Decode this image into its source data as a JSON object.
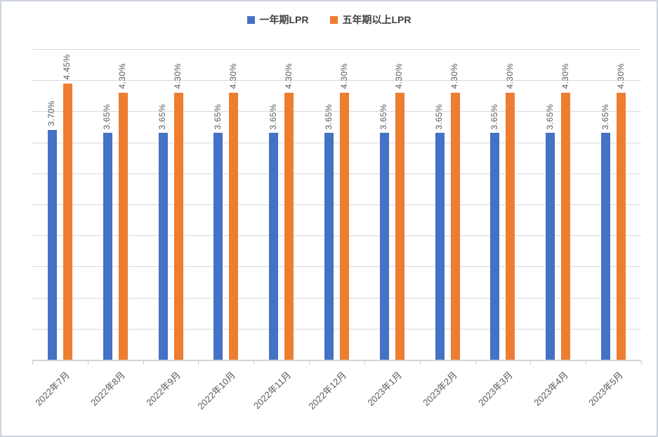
{
  "legend": {
    "items": [
      {
        "label": "一年期LPR",
        "color": "#4472C4"
      },
      {
        "label": "五年期以上LPR",
        "color": "#ED7D31"
      }
    ]
  },
  "chart_data": {
    "type": "bar",
    "title": "",
    "xlabel": "",
    "ylabel": "",
    "categories": [
      "2022年7月",
      "2022年8月",
      "2022年9月",
      "2022年10月",
      "2022年11月",
      "2022年12月",
      "2023年1月",
      "2023年2月",
      "2023年3月",
      "2023年4月",
      "2023年5月"
    ],
    "series": [
      {
        "name": "一年期LPR",
        "color": "#4472C4",
        "values": [
          3.7,
          3.65,
          3.65,
          3.65,
          3.65,
          3.65,
          3.65,
          3.65,
          3.65,
          3.65,
          3.65
        ],
        "labels": [
          "3.70%",
          "3.65%",
          "3.65%",
          "3.65%",
          "3.65%",
          "3.65%",
          "3.65%",
          "3.65%",
          "3.65%",
          "3.65%",
          "3.65%"
        ]
      },
      {
        "name": "五年期以上LPR",
        "color": "#ED7D31",
        "values": [
          4.45,
          4.3,
          4.3,
          4.3,
          4.3,
          4.3,
          4.3,
          4.3,
          4.3,
          4.3,
          4.3
        ],
        "labels": [
          "4.45%",
          "4.30%",
          "4.30%",
          "4.30%",
          "4.30%",
          "4.30%",
          "4.30%",
          "4.30%",
          "4.30%",
          "4.30%",
          "4.30%"
        ]
      }
    ],
    "ylim": [
      0,
      5
    ],
    "grid_step": 0.5,
    "grid": "on",
    "y_axis_labels": "hidden",
    "legend_position": "top",
    "data_label_rotation": 90,
    "x_label_rotation": 45
  },
  "colors": {
    "gridline": "#D9D9D9",
    "axis": "#D2D2D2",
    "data_label": "#595959",
    "x_label": "#595959",
    "legend_text": "#404040",
    "border": "#CCD4DE",
    "background": "#FFFFFF"
  }
}
